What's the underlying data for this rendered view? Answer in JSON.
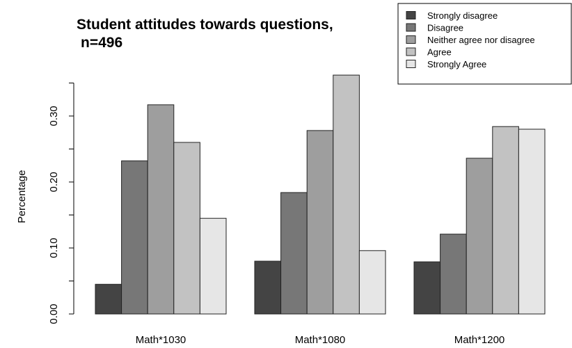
{
  "chart_data": {
    "type": "bar",
    "title": "Student attitudes towards questions,",
    "subtitle": "n=496",
    "xlabel": "",
    "ylabel": "Percentage",
    "categories": [
      "Math*1030",
      "Math*1080",
      "Math*1200"
    ],
    "series": [
      {
        "name": "Strongly disagree",
        "values": [
          0.045,
          0.08,
          0.079
        ],
        "color": "#444444"
      },
      {
        "name": "Disagree",
        "values": [
          0.232,
          0.184,
          0.121
        ],
        "color": "#777777"
      },
      {
        "name": "Neither agree nor disagree",
        "values": [
          0.317,
          0.278,
          0.236
        ],
        "color": "#9e9e9e"
      },
      {
        "name": "Agree",
        "values": [
          0.26,
          0.362,
          0.284
        ],
        "color": "#c2c2c2"
      },
      {
        "name": "Strongly Agree",
        "values": [
          0.145,
          0.096,
          0.28
        ],
        "color": "#e6e6e6"
      }
    ],
    "yticks": [
      "0.00",
      "0.10",
      "0.20",
      "0.30"
    ],
    "ylim": [
      0,
      0.37
    ],
    "grid": false,
    "legend_position": "top-right"
  }
}
